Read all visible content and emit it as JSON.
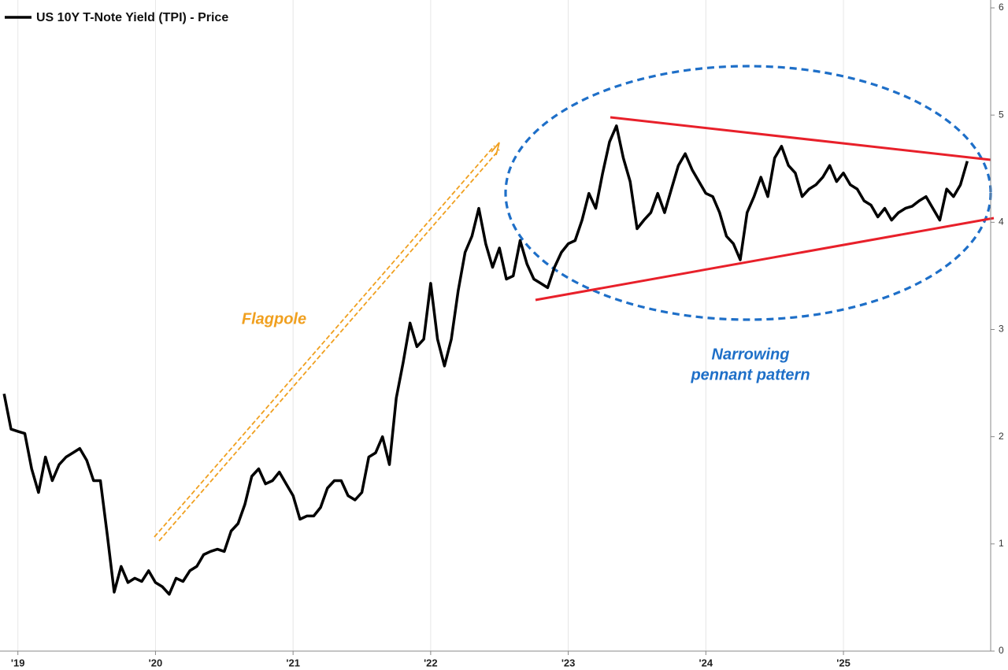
{
  "chart_data": {
    "type": "line",
    "x": [
      2019.4,
      2019.45,
      2019.5,
      2019.55,
      2019.6,
      2019.65,
      2019.7,
      2019.75,
      2019.8,
      2019.85,
      2019.9,
      2019.95,
      2020,
      2020.05,
      2020.1,
      2020.15,
      2020.2,
      2020.25,
      2020.3,
      2020.35,
      2020.4,
      2020.45,
      2020.5,
      2020.55,
      2020.6,
      2020.65,
      2020.7,
      2020.75,
      2020.8,
      2020.85,
      2020.9,
      2020.95,
      2021,
      2021.05,
      2021.1,
      2021.15,
      2021.2,
      2021.25,
      2021.3,
      2021.35,
      2021.4,
      2021.45,
      2021.5,
      2021.55,
      2021.6,
      2021.65,
      2021.7,
      2021.75,
      2021.8,
      2021.85,
      2021.9,
      2021.95,
      2022,
      2022.05,
      2022.1,
      2022.15,
      2022.2,
      2022.25,
      2022.3,
      2022.35,
      2022.4,
      2022.45,
      2022.5,
      2022.55,
      2022.6,
      2022.65,
      2022.7,
      2022.75,
      2022.8,
      2022.85,
      2022.9,
      2022.95,
      2023,
      2023.05,
      2023.1,
      2023.15,
      2023.2,
      2023.25,
      2023.3,
      2023.35,
      2023.4,
      2023.45,
      2023.5,
      2023.55,
      2023.6,
      2023.65,
      2023.7,
      2023.75,
      2023.8,
      2023.85,
      2023.9,
      2023.95,
      2024,
      2024.05,
      2024.1,
      2024.15,
      2024.2,
      2024.25,
      2024.3,
      2024.35,
      2024.4,
      2024.45,
      2024.5,
      2024.55,
      2024.6,
      2024.65,
      2024.7,
      2024.75,
      2024.8,
      2024.85,
      2024.9,
      2024.95,
      2025,
      2025.05,
      2025.1,
      2025.15,
      2025.2,
      2025.25,
      2025.3,
      2025.35,
      2025.4,
      2025.45,
      2025.5,
      2025.55,
      2025.6,
      2025.65,
      2025.7,
      2025.75,
      2025.8,
      2025.85,
      2025.9,
      2025.95,
      2026,
      2026.05,
      2026.1,
      2026.15,
      2026.2,
      2026.25,
      2026.3,
      2026.35,
      2026.4
    ],
    "series": [
      {
        "name": "US 10Y T-Note Yield (TPI) - Price",
        "color": "#000000",
        "values": [
          2.4,
          2.07,
          2.05,
          2.03,
          1.7,
          1.48,
          1.81,
          1.59,
          1.74,
          1.81,
          1.85,
          1.89,
          1.78,
          1.59,
          1.59,
          1.08,
          0.55,
          0.79,
          0.64,
          0.68,
          0.65,
          0.75,
          0.64,
          0.6,
          0.53,
          0.68,
          0.65,
          0.75,
          0.79,
          0.9,
          0.93,
          0.95,
          0.93,
          1.12,
          1.19,
          1.37,
          1.63,
          1.7,
          1.56,
          1.59,
          1.67,
          1.56,
          1.45,
          1.23,
          1.26,
          1.26,
          1.34,
          1.52,
          1.59,
          1.59,
          1.45,
          1.41,
          1.48,
          1.81,
          1.85,
          2.0,
          1.74,
          2.36,
          2.69,
          3.06,
          2.84,
          2.91,
          3.43,
          2.91,
          2.66,
          2.91,
          3.36,
          3.72,
          3.87,
          4.13,
          3.8,
          3.58,
          3.76,
          3.47,
          3.5,
          3.83,
          3.61,
          3.47,
          3.43,
          3.39,
          3.58,
          3.72,
          3.8,
          3.83,
          4.02,
          4.27,
          4.13,
          4.46,
          4.75,
          4.9,
          4.6,
          4.38,
          3.94,
          4.02,
          4.09,
          4.27,
          4.09,
          4.31,
          4.53,
          4.64,
          4.49,
          4.38,
          4.27,
          4.24,
          4.09,
          3.87,
          3.8,
          3.65,
          4.09,
          4.24,
          4.42,
          4.24,
          4.6,
          4.71,
          4.53,
          4.46,
          4.24,
          4.31,
          4.35,
          4.42,
          4.53,
          4.38,
          4.46,
          4.35,
          4.31,
          4.2,
          4.16,
          4.05,
          4.13,
          4.02,
          4.09,
          4.13,
          4.15,
          4.2,
          4.24,
          4.13,
          4.02,
          4.31,
          4.24,
          4.35,
          4.57
        ]
      }
    ],
    "xlim": [
      2019.37,
      2026.57
    ],
    "xticks": [
      {
        "value": 2019.5,
        "label": "'19"
      },
      {
        "value": 2020.5,
        "label": "'20"
      },
      {
        "value": 2021.5,
        "label": "'21"
      },
      {
        "value": 2022.5,
        "label": "'22"
      },
      {
        "value": 2023.5,
        "label": "'23"
      },
      {
        "value": 2024.5,
        "label": "'24"
      },
      {
        "value": 2025.5,
        "label": "'25"
      }
    ],
    "ylim": [
      0,
      6
    ],
    "yticks": [
      0,
      1,
      2,
      3,
      4,
      5,
      6
    ],
    "grid": true,
    "legend": "top-left",
    "annotations": [
      [
        "Flagpole"
      ],
      [
        "Narrowing",
        "pennant pattern"
      ]
    ]
  }
}
